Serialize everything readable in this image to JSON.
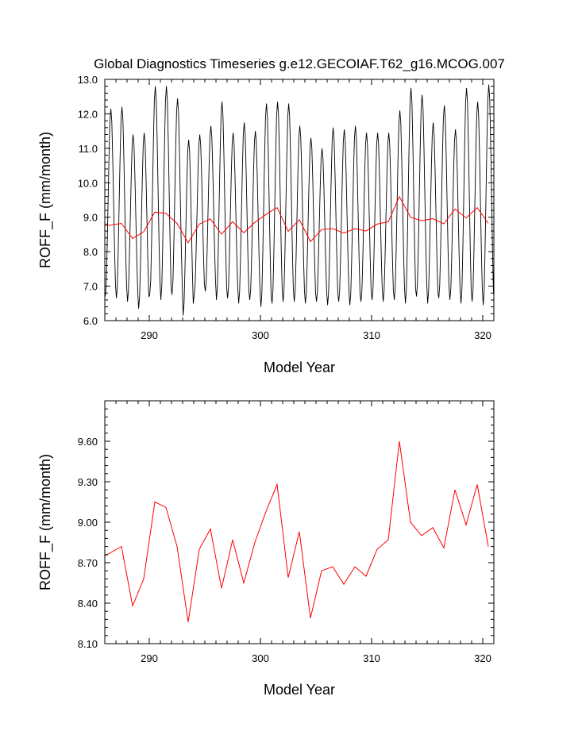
{
  "title": "Global Diagnostics Timeseries g.e12.GECOIAF.T62_g16.MCOG.007",
  "colors": {
    "monthly": "#000000",
    "annual": "#ff0000"
  },
  "chart_data": [
    {
      "type": "line",
      "xlabel": "Model Year",
      "ylabel": "ROFF_F (mm/month)",
      "xlim": [
        286,
        321
      ],
      "ylim": [
        6.0,
        13.0
      ],
      "x_ticks": [
        290,
        300,
        310,
        320
      ],
      "x_tick_labels": [
        "290",
        "300",
        "310",
        "320"
      ],
      "y_ticks": [
        6.0,
        7.0,
        8.0,
        9.0,
        10.0,
        11.0,
        12.0,
        13.0
      ],
      "y_tick_labels": [
        "6.0",
        "7.0",
        "8.0",
        "9.0",
        "10.0",
        "11.0",
        "12.0",
        "13.0"
      ],
      "series": [
        {
          "color": "#000000",
          "seasonal_cycle": true,
          "yearly_peaks": [
            12.15,
            12.2,
            11.4,
            11.45,
            12.8,
            12.8,
            12.45,
            11.25,
            11.4,
            11.65,
            12.35,
            11.45,
            11.75,
            11.5,
            12.3,
            12.35,
            12.3,
            11.65,
            11.3,
            11.0,
            11.6,
            11.55,
            11.65,
            11.45,
            11.45,
            11.45,
            12.1,
            12.75,
            12.55,
            11.75,
            12.25,
            11.55,
            12.75,
            12.35,
            12.85,
            12.05
          ],
          "yearly_troughs": [
            6.7,
            6.65,
            6.55,
            6.35,
            6.75,
            6.6,
            6.75,
            6.15,
            6.75,
            6.85,
            6.6,
            6.65,
            6.5,
            6.6,
            6.4,
            6.5,
            6.55,
            6.55,
            6.5,
            6.55,
            6.45,
            6.55,
            6.45,
            6.55,
            6.6,
            6.55,
            6.6,
            6.5,
            6.7,
            6.5,
            6.65,
            6.6,
            6.5,
            6.55,
            6.45,
            6.55
          ]
        },
        {
          "color": "#ff0000",
          "x": [
            286,
            287.5,
            288.5,
            289.5,
            290.5,
            291.5,
            292.5,
            293.5,
            294.5,
            295.5,
            296.5,
            297.5,
            298.5,
            299.5,
            300.5,
            301.5,
            302.5,
            303.5,
            304.5,
            305.5,
            306.5,
            307.5,
            308.5,
            309.5,
            310.5,
            311.5,
            312.5,
            313.5,
            314.5,
            315.5,
            316.5,
            317.5,
            318.5,
            319.5,
            320.5
          ],
          "y": [
            8.75,
            8.82,
            8.38,
            8.58,
            9.15,
            9.11,
            8.82,
            8.26,
            8.8,
            8.95,
            8.51,
            8.87,
            8.55,
            8.85,
            9.08,
            9.28,
            8.59,
            8.93,
            8.29,
            8.64,
            8.67,
            8.54,
            8.67,
            8.6,
            8.8,
            8.87,
            9.6,
            9.0,
            8.9,
            8.96,
            8.81,
            9.24,
            8.98,
            9.28,
            8.82
          ]
        }
      ]
    },
    {
      "type": "line",
      "xlabel": "Model Year",
      "ylabel": "ROFF_F (mm/month)",
      "xlim": [
        286,
        321
      ],
      "ylim": [
        8.1,
        9.9
      ],
      "x_ticks": [
        290,
        300,
        310,
        320
      ],
      "x_tick_labels": [
        "290",
        "300",
        "310",
        "320"
      ],
      "y_ticks": [
        8.1,
        8.4,
        8.7,
        9.0,
        9.3,
        9.6
      ],
      "y_tick_labels": [
        "8.10",
        "8.40",
        "8.70",
        "9.00",
        "9.30",
        "9.60"
      ],
      "series": [
        {
          "color": "#ff0000",
          "x": [
            286,
            287.5,
            288.5,
            289.5,
            290.5,
            291.5,
            292.5,
            293.5,
            294.5,
            295.5,
            296.5,
            297.5,
            298.5,
            299.5,
            300.5,
            301.5,
            302.5,
            303.5,
            304.5,
            305.5,
            306.5,
            307.5,
            308.5,
            309.5,
            310.5,
            311.5,
            312.5,
            313.5,
            314.5,
            315.5,
            316.5,
            317.5,
            318.5,
            319.5,
            320.5
          ],
          "y": [
            8.75,
            8.82,
            8.38,
            8.58,
            9.15,
            9.11,
            8.82,
            8.26,
            8.8,
            8.95,
            8.51,
            8.87,
            8.55,
            8.85,
            9.08,
            9.28,
            8.59,
            8.93,
            8.29,
            8.64,
            8.67,
            8.54,
            8.67,
            8.6,
            8.8,
            8.87,
            9.6,
            9.0,
            8.9,
            8.96,
            8.81,
            9.24,
            8.98,
            9.28,
            8.82
          ]
        }
      ]
    }
  ]
}
